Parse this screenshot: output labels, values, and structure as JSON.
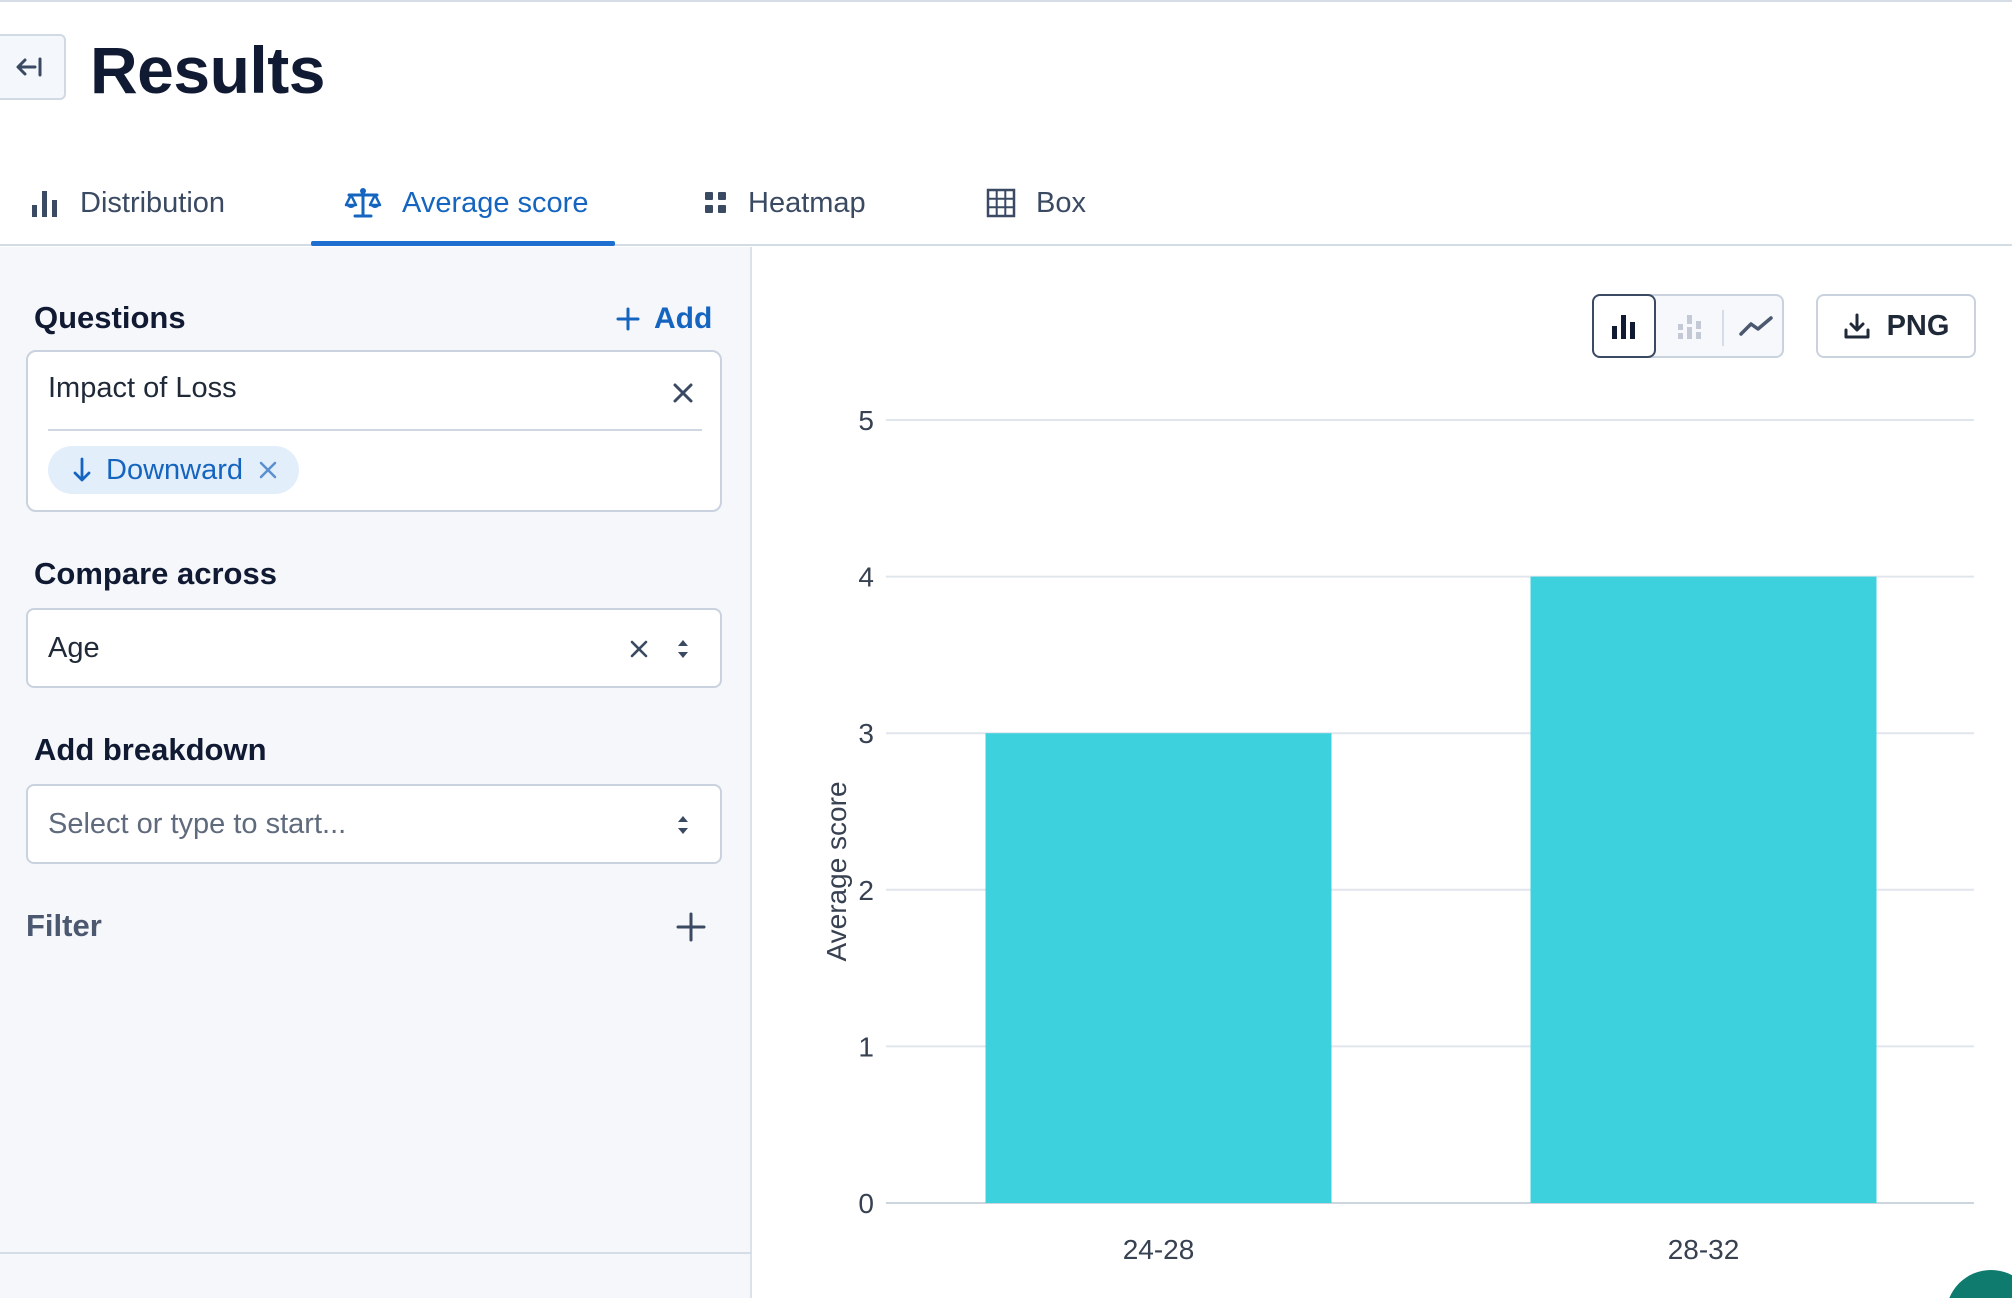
{
  "page": {
    "title": "Results",
    "back_icon": "arrow-left-to-line-icon"
  },
  "tabs": [
    {
      "label": "Distribution",
      "icon": "bar-chart-icon",
      "active": false
    },
    {
      "label": "Average score",
      "icon": "balance-scale-icon",
      "active": true
    },
    {
      "label": "Heatmap",
      "icon": "grid-four-icon",
      "active": false
    },
    {
      "label": "Box",
      "icon": "table-grid-icon",
      "active": false
    }
  ],
  "sidebar": {
    "questions": {
      "label": "Questions",
      "add_label": "Add",
      "items": [
        {
          "name": "Impact of Loss",
          "chip": {
            "label": "Downward",
            "icon": "arrow-down-icon"
          }
        }
      ]
    },
    "compare_across": {
      "label": "Compare across",
      "value": "Age"
    },
    "add_breakdown": {
      "label": "Add breakdown",
      "placeholder": "Select or type to start..."
    },
    "filter": {
      "label": "Filter"
    }
  },
  "toolbar": {
    "chart_types": [
      "bar",
      "stacked-bar",
      "line"
    ],
    "selected_chart_type": "bar",
    "export_label": "PNG"
  },
  "colors": {
    "accent": "#1565c0",
    "bar": "#3dd1de",
    "title": "#111a33"
  },
  "chart_data": {
    "type": "bar",
    "categories": [
      "24-28",
      "28-32"
    ],
    "values": [
      3,
      4
    ],
    "ylabel": "Average score",
    "xlabel": "",
    "ylim": [
      0,
      5
    ],
    "yticks": [
      0,
      1,
      2,
      3,
      4,
      5
    ],
    "grid": true
  }
}
